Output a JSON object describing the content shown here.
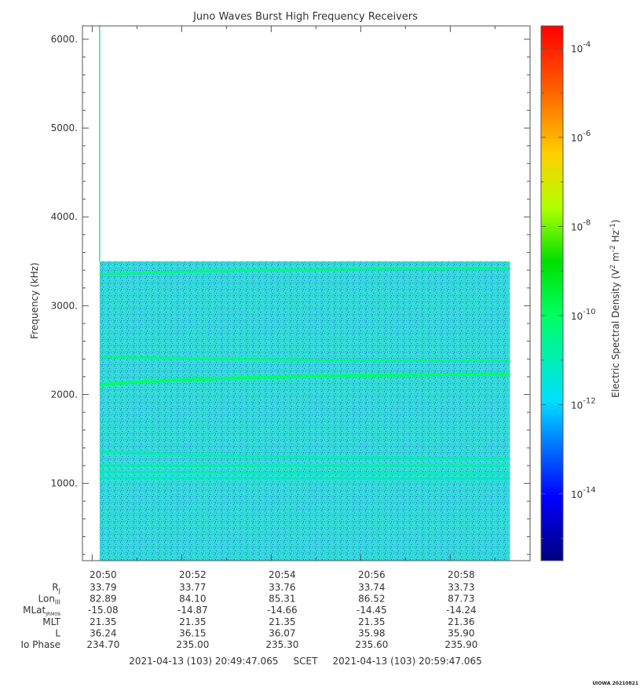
{
  "chart_data": {
    "type": "heatmap",
    "title": "Juno Waves Burst High Frequency Receivers",
    "ylabel": "Frequency (kHz)",
    "ylim": [
      130,
      6150
    ],
    "yticks": [
      1000,
      2000,
      3000,
      4000,
      5000,
      6000
    ],
    "ytick_labels": [
      "1000.",
      "2000.",
      "3000.",
      "4000.",
      "5000.",
      "6000."
    ],
    "xlim": [
      "20:49:47",
      "20:59:47"
    ],
    "xticks": [
      "20:50",
      "20:52",
      "20:54",
      "20:56",
      "20:58"
    ],
    "data_extent": {
      "time_start": "20:50:10",
      "time_end": "20:59:20",
      "freq_max": 3500,
      "spike_time": "20:50:10",
      "spike_freq_max": 6150
    },
    "background_level_exponent": -12,
    "emission_lines": [
      {
        "freq_start": 3350,
        "freq_end": 3420,
        "level_exponent": -10.3
      },
      {
        "freq_start": 2430,
        "freq_end": 2380,
        "level_exponent": -10.3
      },
      {
        "freq_start": 2110,
        "freq_end": 2230,
        "level_exponent": -10.0
      },
      {
        "freq_start": 1360,
        "freq_end": 1280,
        "level_exponent": -10.8
      },
      {
        "freq_start": 1200,
        "freq_end": 1200,
        "level_exponent": -10.8
      },
      {
        "freq_start": 1130,
        "freq_end": 1110,
        "level_exponent": -11.0
      },
      {
        "freq_start": 1060,
        "freq_end": 1050,
        "level_exponent": -11.2
      }
    ],
    "colorbar": {
      "label": "Electric Spectral Density (V^2 m^-2 Hz^-1)",
      "label_parts": {
        "main": "Electric Spectral Density (V",
        "exp1": "2",
        "mid": " m",
        "exp2": "-2",
        "mid2": " Hz",
        "exp3": "-1",
        "end": ")"
      },
      "log_range": [
        -15.5,
        -3.5
      ],
      "ticks": [
        {
          "exp": "-4",
          "value": -4
        },
        {
          "exp": "-6",
          "value": -6
        },
        {
          "exp": "-8",
          "value": -8
        },
        {
          "exp": "-10",
          "value": -10
        },
        {
          "exp": "-12",
          "value": -12
        },
        {
          "exp": "-14",
          "value": -14
        }
      ],
      "tick_base": "10"
    },
    "ephemeris": {
      "rows": [
        {
          "label": "R",
          "sub": "J",
          "values": [
            "33.79",
            "33.77",
            "33.76",
            "33.74",
            "33.73"
          ]
        },
        {
          "label": "Lon",
          "sub": "III",
          "values": [
            "82.89",
            "84.10",
            "85.31",
            "86.52",
            "87.73"
          ]
        },
        {
          "label": "MLat",
          "sub": "JRM09",
          "values": [
            "-15.08",
            "-14.87",
            "-14.66",
            "-14.45",
            "-14.24"
          ]
        },
        {
          "label": "MLT",
          "sub": "",
          "values": [
            "21.35",
            "21.35",
            "21.35",
            "21.35",
            "21.36"
          ]
        },
        {
          "label": "L",
          "sub": "",
          "values": [
            "36.24",
            "36.15",
            "36.07",
            "35.98",
            "35.90"
          ]
        },
        {
          "label": "Io Phase",
          "sub": "",
          "values": [
            "234.70",
            "235.00",
            "235.30",
            "235.60",
            "235.90"
          ]
        }
      ]
    },
    "time_range_text": "2021-04-13 (103) 20:49:47.065     SCET     2021-04-13 (103) 20:59:47.065",
    "footer_tag": "UIOWA 20210821"
  }
}
